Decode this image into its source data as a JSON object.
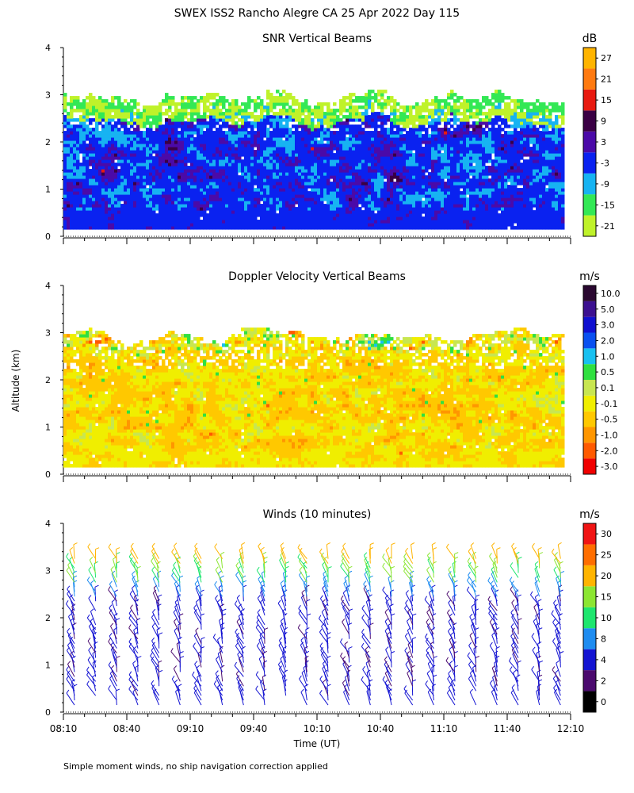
{
  "page": {
    "title": "SWEX ISS2 Rancho Alegre CA  25 Apr 2022 Day 115",
    "footnote": "Simple moment winds, no ship navigation correction applied"
  },
  "chart_data": [
    {
      "type": "heatmap",
      "title": "SNR Vertical Beams",
      "unit": "dB",
      "xlabel": "",
      "ylabel": "",
      "ylim": [
        0,
        4
      ],
      "yticks": [
        "0",
        "1",
        "2",
        "3",
        "4"
      ],
      "x_range_minutes": [
        0,
        240
      ],
      "data_extent": {
        "x": [
          0,
          236
        ],
        "y": [
          0.15,
          3.0
        ]
      },
      "colorbar": {
        "labels": [
          "-21",
          "-15",
          "-9",
          "-3",
          "3",
          "9",
          "15",
          "21",
          "27"
        ],
        "colors": [
          "#bff22a",
          "#33e855",
          "#17b3f2",
          "#0a22f0",
          "#4b0aa8",
          "#3a0044",
          "#e81a10",
          "#ff7a10",
          "#ffb400"
        ]
      }
    },
    {
      "type": "heatmap",
      "title": "Doppler Velocity Vertical Beams",
      "unit": "m/s",
      "xlabel": "",
      "ylabel": "Altitude (km)",
      "ylim": [
        0,
        4
      ],
      "yticks": [
        "0",
        "1",
        "2",
        "3",
        "4"
      ],
      "x_range_minutes": [
        0,
        240
      ],
      "data_extent": {
        "x": [
          0,
          236
        ],
        "y": [
          0.15,
          3.0
        ]
      },
      "colorbar": {
        "labels": [
          "-3.0",
          "-2.0",
          "-1.0",
          "-0.5",
          "-0.1",
          "0.1",
          "0.5",
          "1.0",
          "2.0",
          "3.0",
          "5.0",
          "10.0"
        ],
        "colors": [
          "#f00000",
          "#ff5a00",
          "#ff9600",
          "#ffc800",
          "#f0ee00",
          "#c8e650",
          "#30e040",
          "#18c0f0",
          "#0a50f0",
          "#1010d0",
          "#3c1090",
          "#2a0830"
        ]
      }
    },
    {
      "type": "wind_barbs",
      "title": "Winds (10 minutes)",
      "unit": "m/s",
      "xlabel": "Time (UT)",
      "ylabel": "",
      "ylim": [
        0,
        4
      ],
      "yticks": [
        "0",
        "1",
        "2",
        "3",
        "4"
      ],
      "x_range_minutes": [
        0,
        240
      ],
      "xticks": [
        "08:10",
        "08:40",
        "09:10",
        "09:40",
        "10:10",
        "10:40",
        "11:10",
        "11:40",
        "12:10"
      ],
      "profile_interval_minutes": 10,
      "colorbar": {
        "labels": [
          "0",
          "2",
          "4",
          "8",
          "10",
          "15",
          "20",
          "25",
          "30"
        ],
        "colors": [
          "#000000",
          "#4b0a6e",
          "#1414d2",
          "#1e8cf0",
          "#1ee66e",
          "#8ce632",
          "#ffb400",
          "#ff6e00",
          "#f01414"
        ]
      }
    }
  ]
}
